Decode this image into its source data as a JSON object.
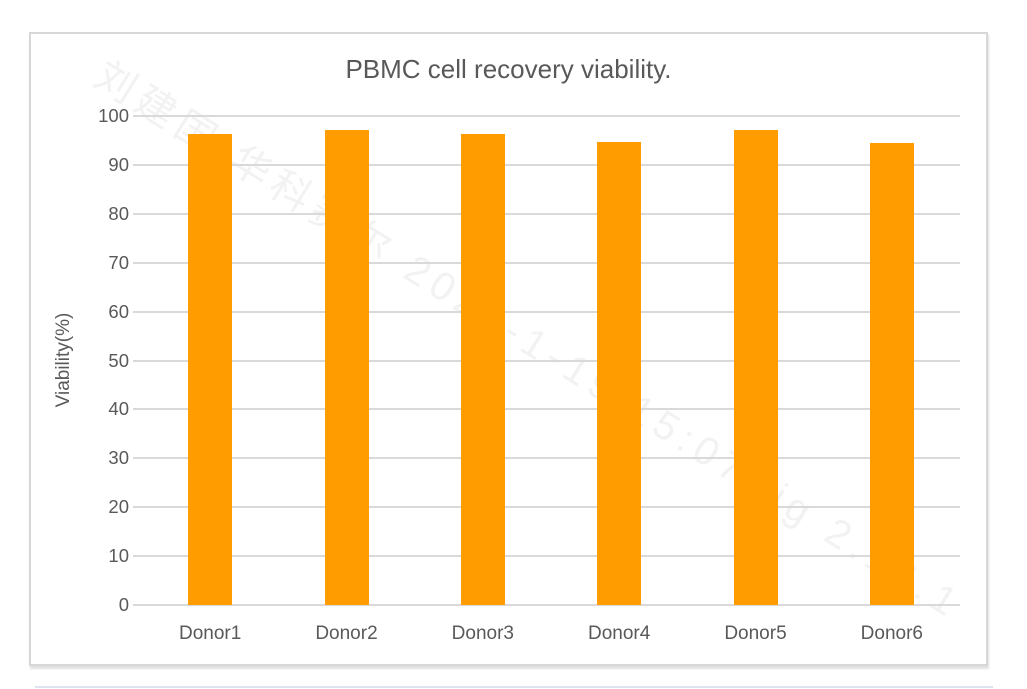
{
  "chart_data": {
    "type": "bar",
    "title": "PBMC cell recovery viability.",
    "categories": [
      "Donor1",
      "Donor2",
      "Donor3",
      "Donor4",
      "Donor5",
      "Donor6"
    ],
    "values": [
      96.4,
      97.2,
      96.4,
      94.7,
      97.2,
      94.4
    ],
    "xlabel": "",
    "ylabel": "Viability(%)",
    "ylim": [
      0,
      100
    ],
    "yticks": [
      0,
      10,
      20,
      30,
      40,
      50,
      60,
      70,
      80,
      90,
      100
    ],
    "grid": true,
    "legend": "none",
    "bar_color": "#ff9d00",
    "gridline_color": "#d9d9d9",
    "text_color": "#595959"
  },
  "watermark": {
    "text": "刘建国 华科赛尔 2024-1-19 15:07 ljg 2.16.1"
  }
}
